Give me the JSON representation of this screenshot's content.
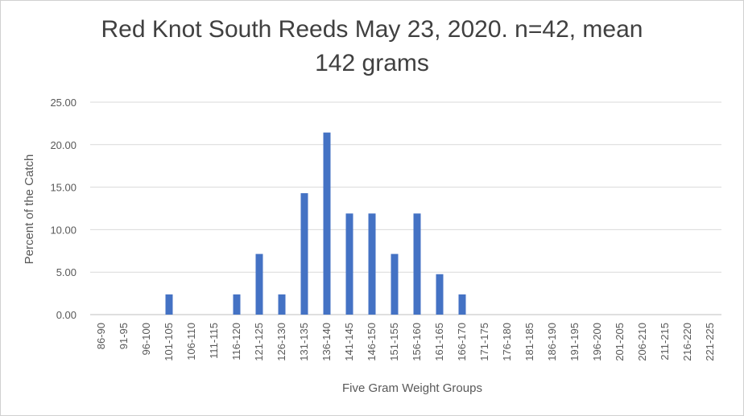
{
  "chart_data": {
    "type": "bar",
    "title_line1": "Red Knot South Reeds May 23, 2020. n=42, mean",
    "title_line2": "142 grams",
    "xlabel": "Five Gram Weight Groups",
    "ylabel": "Percent of the Catch",
    "ylim": [
      0,
      25
    ],
    "yticks": [
      "0.00",
      "5.00",
      "10.00",
      "15.00",
      "20.00",
      "25.00"
    ],
    "grid": "horizontal",
    "legend": "none",
    "bar_color": "#4472C4",
    "categories": [
      "86-90",
      "91-95",
      "96-100",
      "101-105",
      "106-110",
      "111-115",
      "116-120",
      "121-125",
      "126-130",
      "131-135",
      "136-140",
      "141-145",
      "146-150",
      "151-155",
      "156-160",
      "161-165",
      "166-170",
      "171-175",
      "176-180",
      "181-185",
      "186-190",
      "191-195",
      "196-200",
      "201-205",
      "206-210",
      "211-215",
      "216-220",
      "221-225"
    ],
    "values": [
      0,
      0,
      0,
      2.38,
      0,
      0,
      2.38,
      7.14,
      2.38,
      14.29,
      21.43,
      11.9,
      11.9,
      7.14,
      11.9,
      4.76,
      2.38,
      0,
      0,
      0,
      0,
      0,
      0,
      0,
      0,
      0,
      0,
      0
    ]
  }
}
